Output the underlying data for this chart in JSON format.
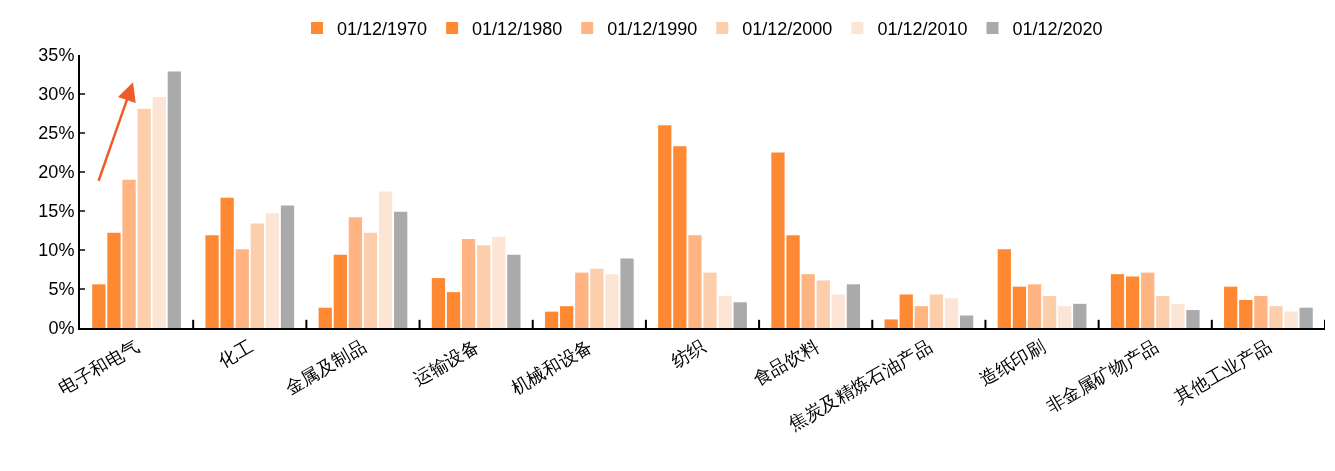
{
  "chart_data": {
    "type": "bar",
    "categories": [
      "电子和电气",
      "化工",
      "金属及制品",
      "运输设备",
      "机械和设备",
      "纺织",
      "食品饮料",
      "焦炭及精炼石油产品",
      "造纸印刷",
      "非金属矿物产品",
      "其他工业产品"
    ],
    "series": [
      {
        "name": "01/12/1970",
        "color": "#ff8833",
        "values": [
          5.6,
          11.9,
          2.6,
          6.4,
          2.1,
          26.0,
          22.5,
          1.1,
          10.1,
          6.9,
          5.3
        ]
      },
      {
        "name": "01/12/1980",
        "color": "#ff8833",
        "values": [
          12.2,
          16.7,
          9.4,
          4.6,
          2.8,
          23.3,
          11.9,
          4.3,
          5.3,
          6.6,
          3.6
        ]
      },
      {
        "name": "01/12/1990",
        "color": "#ffb482",
        "values": [
          19.0,
          10.1,
          14.2,
          11.4,
          7.1,
          11.9,
          6.9,
          2.8,
          5.6,
          7.1,
          4.1
        ]
      },
      {
        "name": "01/12/2000",
        "color": "#fdceab",
        "values": [
          28.1,
          13.4,
          12.2,
          10.6,
          7.6,
          7.1,
          6.1,
          4.3,
          4.1,
          4.1,
          2.8
        ]
      },
      {
        "name": "01/12/2010",
        "color": "#fde5d6",
        "values": [
          29.6,
          14.7,
          17.5,
          11.7,
          6.9,
          4.1,
          4.3,
          3.8,
          2.8,
          3.1,
          2.1
        ]
      },
      {
        "name": "01/12/2020",
        "color": "#aaaaaa",
        "values": [
          32.9,
          15.7,
          14.9,
          9.4,
          8.9,
          3.3,
          5.6,
          1.6,
          3.1,
          2.3,
          2.6
        ]
      }
    ],
    "ylim": [
      0,
      35
    ],
    "yticks": [
      {
        "value": 0,
        "label": "0%"
      },
      {
        "value": 5,
        "label": "5%"
      },
      {
        "value": 10,
        "label": "10%"
      },
      {
        "value": 15,
        "label": "15%"
      },
      {
        "value": 20,
        "label": "20%"
      },
      {
        "value": 25,
        "label": "25%"
      },
      {
        "value": 30,
        "label": "30%"
      },
      {
        "value": 35,
        "label": "35%"
      }
    ],
    "legend": "top"
  }
}
